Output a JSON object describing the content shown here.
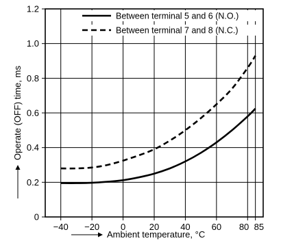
{
  "chart_data": {
    "type": "line",
    "xlabel": "Ambient temperature, °C",
    "ylabel": "Operate (OFF) time, ms",
    "xlim": [
      -50,
      90
    ],
    "ylim": [
      0,
      1.2
    ],
    "x_ticks": [
      -40,
      -20,
      0,
      20,
      40,
      60,
      80,
      85
    ],
    "x_tick_labels": [
      "−40",
      "−20",
      "0",
      "20",
      "40",
      "60",
      "80",
      "85"
    ],
    "y_ticks": [
      0,
      0.2,
      0.4,
      0.6,
      0.8,
      1.0,
      1.2
    ],
    "y_tick_labels": [
      "0",
      "0.2",
      "0.4",
      "0.6",
      "0.8",
      "1.0",
      "1.2"
    ],
    "grid": true,
    "legend_position": "top-right",
    "series": [
      {
        "name": "Between terminal 5 and 6 (N.O.)",
        "line_style": "solid",
        "x": [
          -40,
          -30,
          -20,
          -10,
          0,
          10,
          20,
          30,
          40,
          50,
          60,
          70,
          80,
          85
        ],
        "y": [
          0.195,
          0.195,
          0.197,
          0.203,
          0.212,
          0.228,
          0.25,
          0.28,
          0.32,
          0.37,
          0.43,
          0.5,
          0.58,
          0.625
        ]
      },
      {
        "name": "Between terminal 7 and 8 (N.C.)",
        "line_style": "dashed",
        "x": [
          -40,
          -30,
          -20,
          -10,
          0,
          10,
          20,
          30,
          40,
          50,
          60,
          70,
          80,
          85
        ],
        "y": [
          0.28,
          0.28,
          0.285,
          0.3,
          0.325,
          0.355,
          0.39,
          0.44,
          0.5,
          0.57,
          0.65,
          0.74,
          0.86,
          0.93
        ]
      }
    ]
  }
}
